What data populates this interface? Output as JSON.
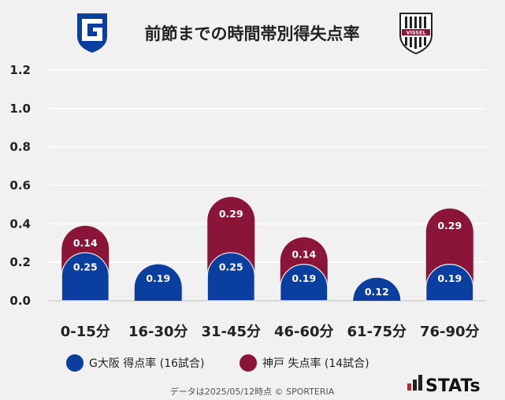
{
  "chart_data": {
    "type": "bar",
    "title": "前節までの時間帯別得失点率",
    "categories": [
      "0-15分",
      "16-30分",
      "31-45分",
      "46-60分",
      "61-75分",
      "76-90分"
    ],
    "series": [
      {
        "name": "G大阪 得点率 (16試合)",
        "values": [
          0.25,
          0.19,
          0.25,
          0.19,
          0.12,
          0.19
        ],
        "color": "#0a3fa0"
      },
      {
        "name": "神戸 失点率 (14試合)",
        "values": [
          0.14,
          null,
          0.29,
          0.14,
          null,
          0.29
        ],
        "color": "#8b1538"
      }
    ],
    "yticks": [
      "0.0",
      "0.2",
      "0.4",
      "0.6",
      "0.8",
      "1.0",
      "1.2"
    ],
    "ylim": [
      0,
      1.2
    ],
    "grid": true,
    "legend": "bottom",
    "xlabel": "",
    "ylabel": ""
  },
  "logos": {
    "left": {
      "icon": "gamba-osaka-crest-icon",
      "color": "#0a3fa0"
    },
    "right": {
      "icon": "vissel-kobe-crest-icon",
      "text": "VISSEL",
      "color": "#8b1538"
    }
  },
  "footer": {
    "note": "データは2025/05/12時点 © SPORTERIA"
  },
  "brand": {
    "name": "STATs",
    "icon": "stats-bars-icon"
  }
}
